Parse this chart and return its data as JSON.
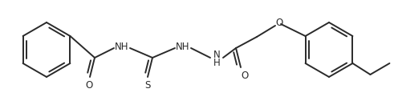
{
  "background": "#ffffff",
  "line_color": "#2a2a2a",
  "line_width": 1.4,
  "font_size": 8.5,
  "fig_width": 4.91,
  "fig_height": 1.36,
  "dpi": 100,
  "xlim": [
    0,
    491
  ],
  "ylim": [
    0,
    136
  ]
}
